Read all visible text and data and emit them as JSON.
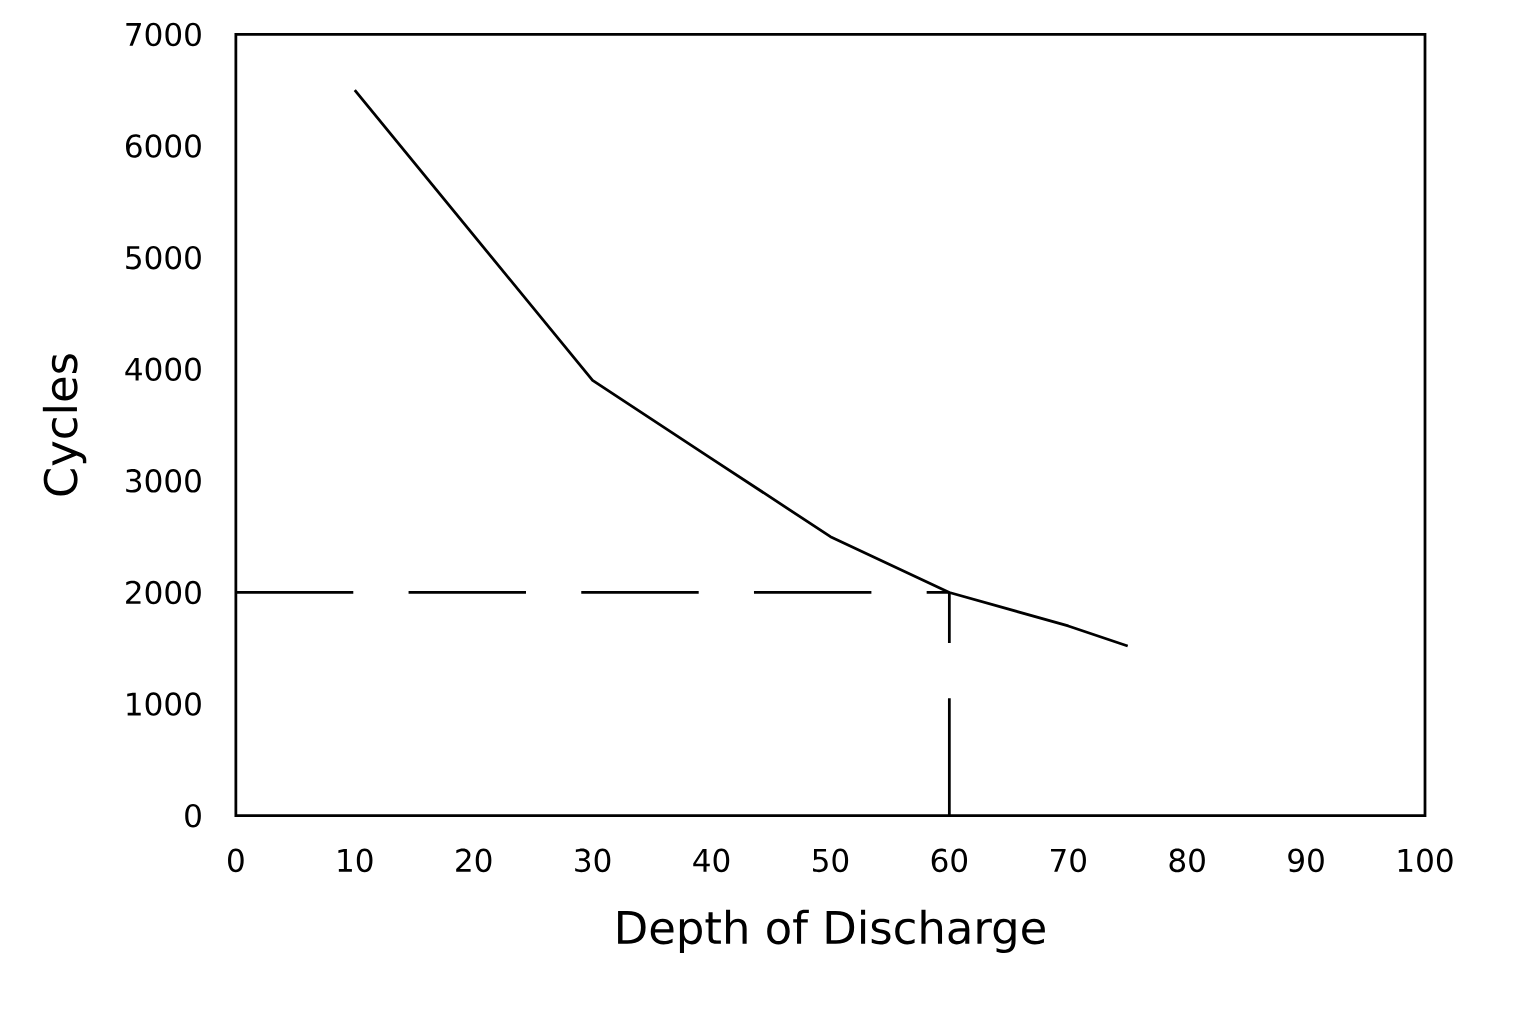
{
  "chart_data": {
    "type": "line",
    "xlabel": "Depth of Discharge",
    "ylabel": "Cycles",
    "x": [
      10,
      20,
      30,
      40,
      50,
      60,
      70,
      75
    ],
    "series": [
      {
        "color": "#000000",
        "values": [
          6500,
          5200,
          3900,
          3200,
          2500,
          2000,
          1700,
          1520
        ]
      }
    ],
    "xlim": [
      0,
      100
    ],
    "xticks": [
      0,
      10,
      20,
      30,
      40,
      50,
      60,
      70,
      80,
      90,
      100
    ],
    "ylim": [
      0,
      7000
    ],
    "yticks": [
      0,
      1000,
      2000,
      3000,
      4000,
      5000,
      6000,
      7000
    ],
    "ref_lines": [
      {
        "axis": "y",
        "value": 2000,
        "line_style": "dashed"
      },
      {
        "axis": "x",
        "value": 60,
        "line_style": "dashed"
      }
    ],
    "grid": false,
    "marker": "none",
    "line_style": "solid"
  }
}
